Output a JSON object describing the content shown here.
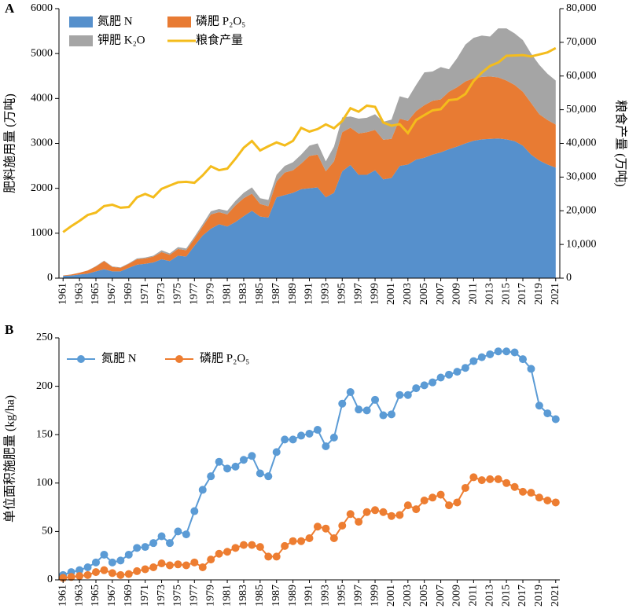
{
  "chart_data": [
    {
      "type": "area",
      "panel_label": "A",
      "ylabel": "肥料施用量 (万吨)",
      "y2label": "粮食产量 (万吨)",
      "x": [
        1961,
        1962,
        1963,
        1964,
        1965,
        1966,
        1967,
        1968,
        1969,
        1970,
        1971,
        1972,
        1973,
        1974,
        1975,
        1976,
        1977,
        1978,
        1979,
        1980,
        1981,
        1982,
        1983,
        1984,
        1985,
        1986,
        1987,
        1988,
        1989,
        1990,
        1991,
        1992,
        1993,
        1994,
        1995,
        1996,
        1997,
        1998,
        1999,
        2000,
        2001,
        2002,
        2003,
        2004,
        2005,
        2006,
        2007,
        2008,
        2009,
        2010,
        2011,
        2012,
        2013,
        2014,
        2015,
        2016,
        2017,
        2018,
        2019,
        2020,
        2021
      ],
      "xlim": [
        1960.5,
        2021.5
      ],
      "xticks": [
        1961,
        1963,
        1965,
        1967,
        1969,
        1971,
        1973,
        1975,
        1977,
        1979,
        1981,
        1983,
        1985,
        1987,
        1989,
        1991,
        1993,
        1995,
        1997,
        1999,
        2001,
        2003,
        2005,
        2007,
        2009,
        2011,
        2013,
        2015,
        2017,
        2019,
        2021
      ],
      "ylim": [
        0,
        6000
      ],
      "yticks": [
        0,
        1000,
        2000,
        3000,
        4000,
        5000,
        6000
      ],
      "y2lim": [
        0,
        80000
      ],
      "y2ticks": [
        0,
        {
          "value": 10000,
          "label": "10,000"
        },
        {
          "value": 20000,
          "label": "20,000"
        },
        {
          "value": 30000,
          "label": "30,000"
        },
        {
          "value": 40000,
          "label": "40,000"
        },
        {
          "value": 50000,
          "label": "50,000"
        },
        {
          "value": 60000,
          "label": "60,000"
        },
        {
          "value": 70000,
          "label": "70,000"
        },
        {
          "value": 80000,
          "label": "80,000"
        }
      ],
      "stacked": true,
      "series": [
        {
          "name": "氮肥 N",
          "color": "#5690cc",
          "values": [
            50,
            60,
            80,
            100,
            150,
            200,
            150,
            150,
            230,
            300,
            320,
            350,
            420,
            380,
            500,
            480,
            720,
            950,
            1100,
            1200,
            1150,
            1250,
            1380,
            1500,
            1370,
            1350,
            1800,
            1850,
            1900,
            1980,
            2000,
            2020,
            1800,
            1900,
            2380,
            2520,
            2300,
            2300,
            2400,
            2200,
            2230,
            2500,
            2530,
            2640,
            2680,
            2750,
            2800,
            2870,
            2930,
            3000,
            3060,
            3090,
            3100,
            3110,
            3090,
            3050,
            2950,
            2750,
            2620,
            2530,
            2460
          ]
        },
        {
          "name": "磷肥 P₂O₅",
          "color": "#e87b33",
          "values": [
            10,
            20,
            40,
            70,
            110,
            180,
            100,
            80,
            90,
            120,
            120,
            130,
            160,
            140,
            150,
            140,
            160,
            200,
            320,
            270,
            270,
            370,
            400,
            380,
            280,
            250,
            350,
            500,
            500,
            570,
            720,
            730,
            580,
            700,
            870,
            830,
            920,
            950,
            900,
            880,
            870,
            1050,
            970,
            1080,
            1170,
            1200,
            1180,
            1280,
            1320,
            1380,
            1390,
            1390,
            1390,
            1360,
            1310,
            1250,
            1200,
            1150,
            1030,
            990,
            960
          ]
        },
        {
          "name": "钾肥 K₂O",
          "color": "#a5a5a5",
          "values": [
            0,
            0,
            0,
            0,
            10,
            10,
            10,
            10,
            10,
            20,
            20,
            20,
            40,
            30,
            40,
            40,
            40,
            50,
            70,
            70,
            80,
            100,
            120,
            140,
            130,
            140,
            150,
            150,
            180,
            200,
            230,
            250,
            220,
            330,
            330,
            250,
            330,
            320,
            350,
            400,
            430,
            500,
            500,
            580,
            730,
            650,
            720,
            500,
            650,
            820,
            900,
            920,
            890,
            1090,
            1160,
            1150,
            1150,
            1100,
            1100,
            1030,
            980
          ]
        },
        {
          "name": "粮食产量",
          "color": "#f4bc1c",
          "type": "line",
          "axis": "y2",
          "values": [
            13650,
            15440,
            17000,
            18750,
            19450,
            21400,
            21800,
            20900,
            21100,
            24000,
            25000,
            24000,
            26500,
            27500,
            28450,
            28600,
            28300,
            30500,
            33200,
            32050,
            32500,
            35450,
            38700,
            40700,
            37900,
            39150,
            40300,
            39400,
            40750,
            44600,
            43500,
            44250,
            45650,
            44500,
            46650,
            50450,
            49400,
            51200,
            50850,
            46200,
            45250,
            45700,
            43050,
            46950,
            48400,
            49800,
            50150,
            52850,
            53100,
            54650,
            58500,
            61000,
            63000,
            64000,
            66000,
            66100,
            66200,
            65800,
            66400,
            67000,
            68300
          ]
        }
      ]
    },
    {
      "type": "line",
      "panel_label": "B",
      "ylabel": "单位面积施肥量 (kg/ha)",
      "x": [
        1961,
        1962,
        1963,
        1964,
        1965,
        1966,
        1967,
        1968,
        1969,
        1970,
        1971,
        1972,
        1973,
        1974,
        1975,
        1976,
        1977,
        1978,
        1979,
        1980,
        1981,
        1982,
        1983,
        1984,
        1985,
        1986,
        1987,
        1988,
        1989,
        1990,
        1991,
        1992,
        1993,
        1994,
        1995,
        1996,
        1997,
        1998,
        1999,
        2000,
        2001,
        2002,
        2003,
        2004,
        2005,
        2006,
        2007,
        2008,
        2009,
        2010,
        2011,
        2012,
        2013,
        2014,
        2015,
        2016,
        2017,
        2018,
        2019,
        2020,
        2021
      ],
      "xlim": [
        1960.5,
        2021.5
      ],
      "xticks": [
        1961,
        1963,
        1965,
        1967,
        1969,
        1971,
        1973,
        1975,
        1977,
        1979,
        1981,
        1983,
        1985,
        1987,
        1989,
        1991,
        1993,
        1995,
        1997,
        1999,
        2001,
        2003,
        2005,
        2007,
        2009,
        2011,
        2013,
        2015,
        2017,
        2019,
        2021
      ],
      "ylim": [
        0,
        250
      ],
      "yticks": [
        0,
        50,
        100,
        150,
        200,
        250
      ],
      "series": [
        {
          "name": "氮肥 N",
          "color": "#5b9bd5",
          "values": [
            5,
            8,
            10,
            13,
            18,
            26,
            18,
            20,
            26,
            33,
            34,
            38,
            45,
            38,
            50,
            47,
            71,
            93,
            107,
            122,
            115,
            117,
            124,
            128,
            110,
            107,
            132,
            145,
            145,
            149,
            151,
            155,
            138,
            147,
            182,
            194,
            176,
            175,
            186,
            170,
            171,
            191,
            191,
            198,
            201,
            204,
            209,
            212,
            215,
            219,
            226,
            230,
            233,
            236,
            236,
            235,
            228,
            218,
            180,
            172,
            166
          ]
        },
        {
          "name": "磷肥 P₂O₅",
          "color": "#ed7d31",
          "values": [
            2,
            3,
            4,
            5,
            8,
            10,
            7,
            5,
            6,
            9,
            11,
            13,
            17,
            15,
            16,
            15,
            18,
            13,
            21,
            27,
            29,
            33,
            36,
            36,
            34,
            24,
            24,
            35,
            40,
            40,
            43,
            55,
            53,
            43,
            56,
            68,
            60,
            70,
            72,
            70,
            66,
            67,
            77,
            73,
            82,
            85,
            88,
            77,
            80,
            95,
            106,
            103,
            104,
            104,
            100,
            96,
            91,
            90,
            85,
            82,
            80
          ]
        }
      ]
    }
  ]
}
